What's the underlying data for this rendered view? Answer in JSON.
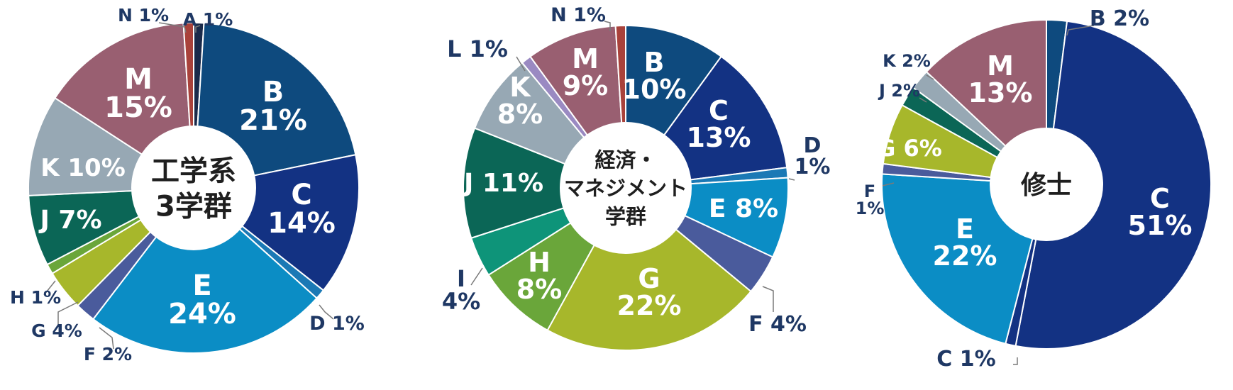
{
  "colors": {
    "A": "#1a2a4a",
    "B": "#0e4a7e",
    "C": "#133283",
    "D": "#1b79b5",
    "E": "#0b8dc5",
    "F": "#4a5b9c",
    "G": "#a7b72b",
    "H": "#6aa63a",
    "I": "#0e9479",
    "J": "#0b6656",
    "K": "#97a8b4",
    "L": "#9a8ac2",
    "M": "#995f71",
    "N": "#a9423b"
  },
  "chart_data": [
    {
      "type": "pie",
      "center_label": [
        "工学系",
        "3学群"
      ],
      "slices": [
        {
          "key": "A",
          "value": 1,
          "label": "A 1%"
        },
        {
          "key": "B",
          "value": 21,
          "label": "B 21%"
        },
        {
          "key": "C",
          "value": 14,
          "label": "C 14%"
        },
        {
          "key": "D",
          "value": 1,
          "label": "D 1%"
        },
        {
          "key": "E",
          "value": 24,
          "label": "E 24%"
        },
        {
          "key": "F",
          "value": 2,
          "label": "F 2%"
        },
        {
          "key": "G",
          "value": 4,
          "label": "G 4%"
        },
        {
          "key": "H",
          "value": 1,
          "label": "H 1%"
        },
        {
          "key": "J",
          "value": 7,
          "label": "J 7%"
        },
        {
          "key": "K",
          "value": 10,
          "label": "K 10%"
        },
        {
          "key": "M",
          "value": 15,
          "label": "M 15%"
        },
        {
          "key": "N",
          "value": 1,
          "label": "N 1%"
        }
      ]
    },
    {
      "type": "pie",
      "center_label": [
        "経済・",
        "マネジメント",
        "学群"
      ],
      "slices": [
        {
          "key": "B",
          "value": 10,
          "label": "B 10%"
        },
        {
          "key": "C",
          "value": 13,
          "label": "C 13%"
        },
        {
          "key": "D",
          "value": 1,
          "label": "D 1%"
        },
        {
          "key": "E",
          "value": 8,
          "label": "E 8%"
        },
        {
          "key": "F",
          "value": 4,
          "label": "F 4%"
        },
        {
          "key": "G",
          "value": 22,
          "label": "G 22%"
        },
        {
          "key": "H",
          "value": 8,
          "label": "H 8%"
        },
        {
          "key": "I",
          "value": 4,
          "label": "I 4%"
        },
        {
          "key": "J",
          "value": 11,
          "label": "J 11%"
        },
        {
          "key": "K",
          "value": 8,
          "label": "K 8%"
        },
        {
          "key": "L",
          "value": 1,
          "label": "L 1%"
        },
        {
          "key": "M",
          "value": 9,
          "label": "M 9%"
        },
        {
          "key": "N",
          "value": 1,
          "label": "N 1%"
        }
      ]
    },
    {
      "type": "pie",
      "center_label": [
        "修士"
      ],
      "slices": [
        {
          "key": "B",
          "value": 2,
          "label": "B 2%"
        },
        {
          "key": "C",
          "value": 51,
          "label": "C 51%"
        },
        {
          "key": "C",
          "value": 1,
          "label": "C 1%"
        },
        {
          "key": "E",
          "value": 22,
          "label": "E 22%"
        },
        {
          "key": "F",
          "value": 1,
          "label": "F 1%"
        },
        {
          "key": "G",
          "value": 6,
          "label": "G 6%"
        },
        {
          "key": "J",
          "value": 2,
          "label": "J 2%"
        },
        {
          "key": "K",
          "value": 2,
          "label": "K 2%"
        },
        {
          "key": "M",
          "value": 13,
          "label": "M 13%"
        }
      ]
    }
  ]
}
